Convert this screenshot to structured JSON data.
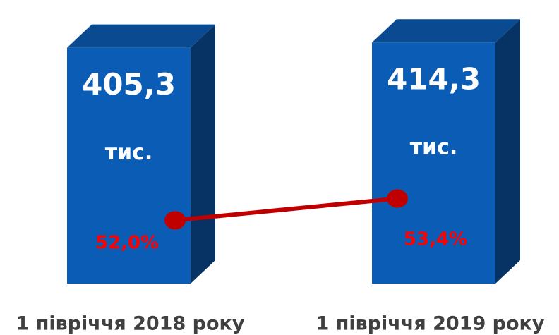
{
  "chart_data": {
    "type": "bar",
    "categories": [
      "1 півріччя 2018 року",
      "1 півріччя 2019 року"
    ],
    "series": [
      {
        "type": "bar",
        "color": "#0b5cb5",
        "values": [
          405.3,
          414.3
        ],
        "value_labels": [
          "405,3",
          "414,3"
        ],
        "unit": "тис."
      },
      {
        "type": "line",
        "color": "#c00000",
        "values": [
          52.0,
          53.4
        ],
        "value_labels": [
          "52,0%",
          "53,4%"
        ]
      }
    ]
  }
}
